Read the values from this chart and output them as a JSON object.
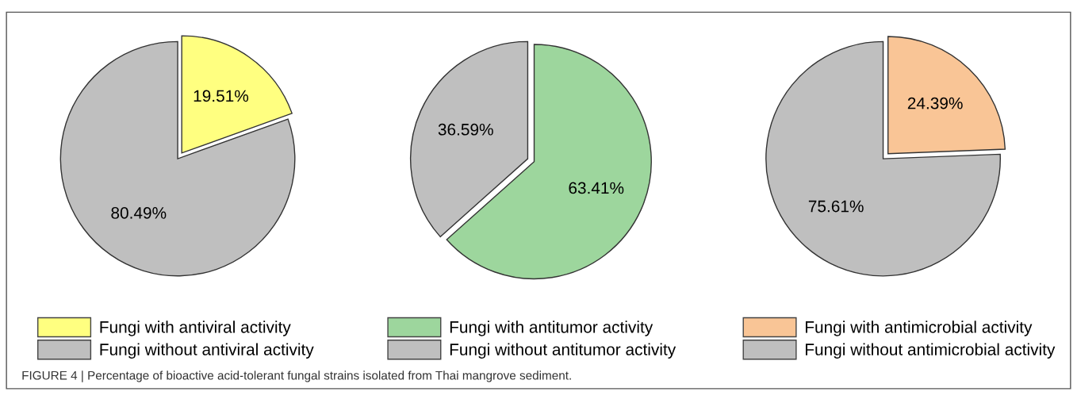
{
  "chart_data": [
    {
      "type": "pie",
      "categories": [
        "Fungi with antiviral activity",
        "Fungi without antiviral activity"
      ],
      "values": [
        19.51,
        80.49
      ],
      "value_labels": [
        "19.51%",
        "80.49%"
      ],
      "colors": [
        "#ffff80",
        "#bfbfbf"
      ],
      "legend": "bottom",
      "annotations": [
        "FIGURE 4 | Percentage of bioactive acid-tolerant fungal strains isolated from Thai mangrove sediment."
      ]
    },
    {
      "type": "pie",
      "categories": [
        "Fungi with antitumor activity",
        "Fungi without antitumor activity"
      ],
      "values": [
        63.41,
        36.59
      ],
      "value_labels": [
        "63.41%",
        "36.59%"
      ],
      "colors": [
        "#9dd69d",
        "#bfbfbf"
      ],
      "legend": "bottom"
    },
    {
      "type": "pie",
      "categories": [
        "Fungi with antimicrobial activity",
        "Fungi without antimicrobial activity"
      ],
      "values": [
        24.39,
        75.61
      ],
      "value_labels": [
        "24.39%",
        "75.61%"
      ],
      "colors": [
        "#f9c596",
        "#bfbfbf"
      ],
      "legend": "bottom"
    }
  ]
}
